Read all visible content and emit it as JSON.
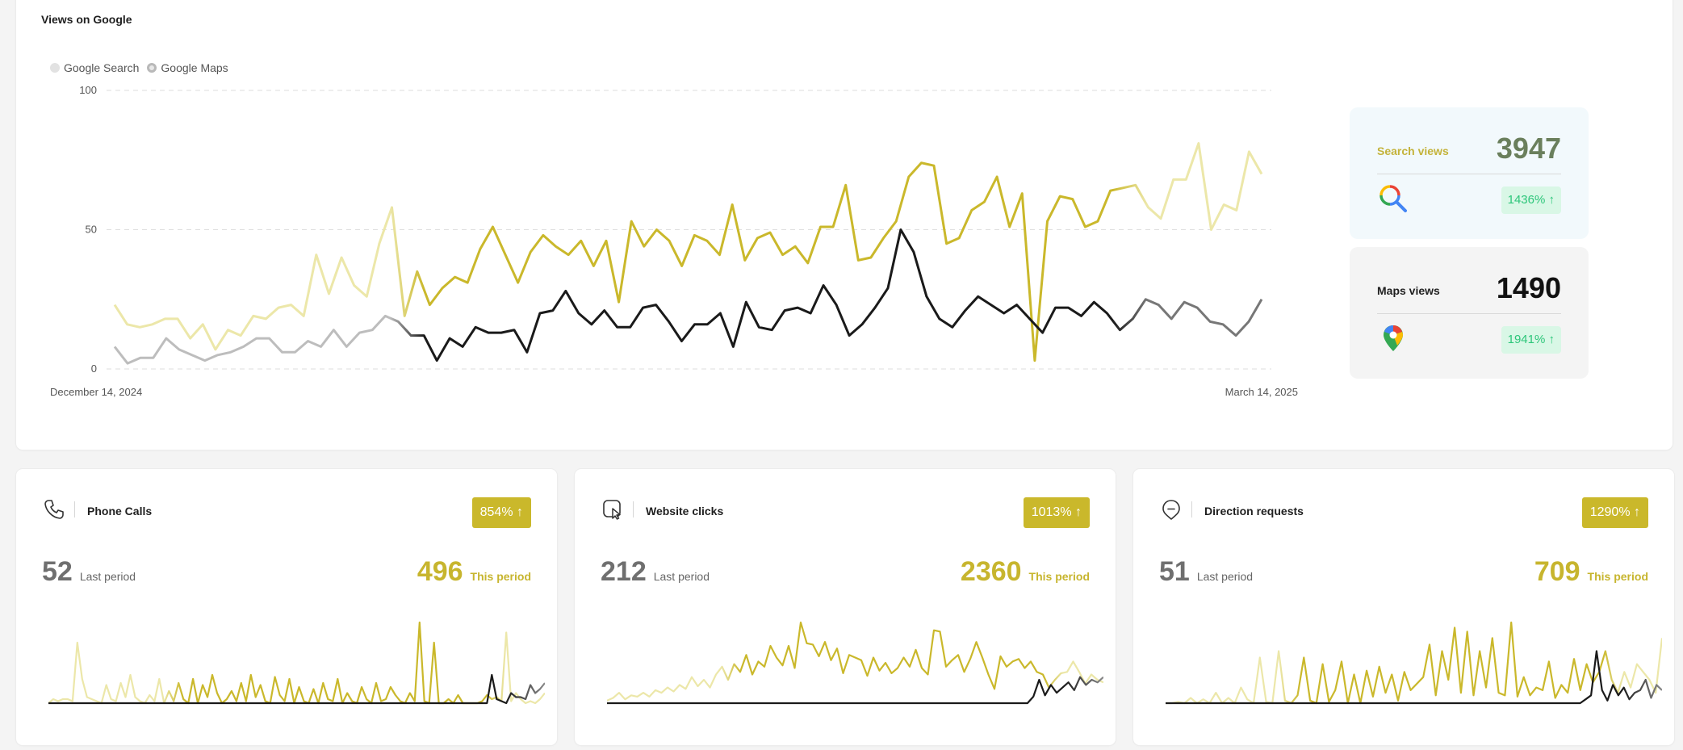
{
  "views": {
    "title": "Views on Google",
    "legend": [
      {
        "label": "Google Search",
        "color": "#dcdcdc"
      },
      {
        "label": "Google Maps",
        "color": "#b9b9b9"
      }
    ],
    "search_box": {
      "label": "Search views",
      "value": "3947",
      "change": "1436% ↑",
      "label_color": "#c4b33a",
      "value_color": "#6a7f5c"
    },
    "maps_box": {
      "label": "Maps views",
      "value": "1490",
      "change": "1941% ↑"
    }
  },
  "chart_data": {
    "type": "line",
    "x_start_label": "December 14, 2024",
    "x_end_label": "March 14, 2025",
    "yticks": [
      "100",
      "50",
      "0"
    ],
    "ylim": [
      0,
      100
    ],
    "grid": "horizontal dashed",
    "legend": "top-left",
    "series": [
      {
        "name": "Google Search",
        "color": "#cab82b",
        "values": [
          23,
          16,
          15,
          16,
          18,
          18,
          11,
          16,
          7,
          14,
          12,
          19,
          18,
          22,
          23,
          19,
          41,
          27,
          40,
          30,
          26,
          45,
          58,
          19,
          35,
          23,
          29,
          33,
          31,
          43,
          51,
          41,
          31,
          42,
          48,
          44,
          41,
          46,
          37,
          46,
          24,
          53,
          44,
          50,
          46,
          37,
          48,
          46,
          41,
          59,
          39,
          47,
          49,
          41,
          44,
          38,
          51,
          51,
          66,
          39,
          40,
          47,
          53,
          69,
          74,
          73,
          45,
          47,
          57,
          60,
          69,
          51,
          63,
          3,
          53,
          62,
          61,
          51,
          53,
          64,
          65,
          66,
          58,
          54,
          68,
          68,
          81,
          50,
          59,
          57,
          78,
          70
        ]
      },
      {
        "name": "Google Maps",
        "color": "#1a1a1a",
        "values": [
          8,
          2,
          4,
          4,
          11,
          7,
          5,
          3,
          5,
          6,
          8,
          11,
          11,
          6,
          6,
          10,
          8,
          14,
          8,
          13,
          14,
          19,
          17,
          12,
          12,
          3,
          11,
          8,
          15,
          13,
          13,
          14,
          6,
          20,
          21,
          28,
          20,
          16,
          21,
          15,
          15,
          22,
          23,
          17,
          10,
          16,
          16,
          20,
          8,
          24,
          15,
          14,
          21,
          22,
          20,
          30,
          23,
          12,
          16,
          22,
          29,
          50,
          42,
          26,
          18,
          15,
          21,
          26,
          23,
          20,
          23,
          18,
          13,
          22,
          22,
          19,
          24,
          20,
          14,
          18,
          25,
          23,
          18,
          24,
          22,
          17,
          16,
          12,
          17,
          25
        ]
      }
    ]
  },
  "metrics": [
    {
      "title": "Phone Calls",
      "icon": "phone-icon",
      "change": "854% ↑",
      "last_value": "52",
      "last_label": "Last period",
      "this_value": "496",
      "this_label": "This period",
      "spark": {
        "current": [
          0,
          2,
          1,
          2,
          2,
          1,
          30,
          12,
          3,
          2,
          1,
          0,
          9,
          2,
          1,
          10,
          3,
          14,
          3,
          1,
          0,
          4,
          1,
          12,
          0,
          6,
          1,
          10,
          2,
          0,
          12,
          0,
          9,
          3,
          14,
          5,
          0,
          2,
          6,
          1,
          10,
          1,
          14,
          3,
          9,
          1,
          0,
          13,
          4,
          1,
          12,
          0,
          8,
          1,
          0,
          7,
          0,
          10,
          2,
          1,
          12,
          0,
          5,
          1,
          0,
          8,
          2,
          0,
          10,
          1,
          2,
          8,
          4,
          1,
          0,
          5,
          1,
          40,
          1,
          0,
          30,
          0,
          0,
          2,
          0,
          4,
          0,
          0,
          0,
          0,
          1,
          4,
          2,
          3,
          1,
          35,
          1,
          5,
          2,
          0,
          1,
          0,
          2,
          5
        ],
        "previous": [
          0,
          0,
          0,
          0,
          0,
          0,
          0,
          0,
          0,
          0,
          0,
          0,
          0,
          0,
          0,
          0,
          0,
          0,
          0,
          0,
          0,
          0,
          0,
          0,
          0,
          0,
          0,
          0,
          0,
          0,
          0,
          0,
          0,
          0,
          0,
          0,
          0,
          0,
          0,
          0,
          0,
          0,
          0,
          0,
          0,
          0,
          0,
          0,
          0,
          0,
          0,
          0,
          0,
          0,
          0,
          0,
          0,
          0,
          0,
          0,
          0,
          0,
          0,
          0,
          0,
          0,
          0,
          0,
          0,
          0,
          0,
          0,
          0,
          0,
          0,
          0,
          0,
          0,
          0,
          0,
          0,
          0,
          0,
          0,
          0,
          0,
          0,
          0,
          0,
          0,
          0,
          0,
          14,
          2,
          1,
          0,
          5,
          3,
          3,
          2,
          9,
          5,
          7,
          10
        ]
      }
    },
    {
      "title": "Website clicks",
      "icon": "website-click-icon",
      "change": "1013% ↑",
      "last_value": "212",
      "last_label": "Last period",
      "this_value": "2360",
      "this_label": "This period",
      "spark": {
        "current": [
          2,
          4,
          8,
          3,
          6,
          5,
          8,
          5,
          10,
          8,
          12,
          9,
          14,
          11,
          20,
          13,
          18,
          12,
          22,
          28,
          18,
          30,
          24,
          37,
          22,
          32,
          28,
          44,
          35,
          29,
          44,
          27,
          62,
          46,
          45,
          36,
          47,
          33,
          42,
          23,
          37,
          35,
          33,
          21,
          35,
          25,
          31,
          23,
          27,
          35,
          28,
          41,
          27,
          22,
          56,
          55,
          28,
          33,
          37,
          24,
          34,
          47,
          35,
          22,
          11,
          36,
          28,
          32,
          34,
          27,
          32,
          24,
          22,
          12,
          18,
          23,
          24,
          32,
          24,
          15,
          22,
          18,
          16
        ],
        "previous": [
          0,
          0,
          0,
          0,
          0,
          0,
          0,
          0,
          0,
          0,
          0,
          0,
          0,
          0,
          0,
          0,
          0,
          0,
          0,
          0,
          0,
          0,
          0,
          0,
          0,
          0,
          0,
          0,
          0,
          0,
          0,
          0,
          0,
          0,
          0,
          0,
          0,
          0,
          0,
          0,
          0,
          0,
          0,
          0,
          0,
          0,
          0,
          0,
          0,
          0,
          0,
          0,
          0,
          0,
          0,
          0,
          0,
          0,
          0,
          0,
          0,
          0,
          0,
          0,
          0,
          0,
          0,
          0,
          0,
          0,
          0,
          0,
          0,
          5,
          18,
          6,
          14,
          8,
          12,
          16,
          10,
          20,
          14,
          18,
          16,
          20
        ]
      }
    },
    {
      "title": "Direction requests",
      "icon": "direction-icon",
      "change": "1290% ↑",
      "last_value": "51",
      "last_label": "Last period",
      "this_value": "709",
      "this_label": "This period",
      "spark": {
        "current": [
          0,
          0,
          1,
          0,
          4,
          0,
          3,
          0,
          8,
          0,
          4,
          0,
          12,
          3,
          0,
          35,
          1,
          0,
          40,
          2,
          0,
          6,
          35,
          2,
          0,
          30,
          1,
          10,
          32,
          0,
          22,
          0,
          25,
          5,
          28,
          8,
          22,
          2,
          24,
          10,
          15,
          20,
          45,
          6,
          40,
          18,
          58,
          8,
          55,
          6,
          40,
          12,
          50,
          8,
          6,
          62,
          5,
          20,
          6,
          12,
          10,
          32,
          4,
          14,
          8,
          34,
          10,
          30,
          16,
          24,
          40,
          18,
          8,
          24,
          12,
          30,
          24,
          18,
          8,
          50
        ],
        "previous": [
          0,
          0,
          0,
          0,
          0,
          0,
          0,
          0,
          0,
          0,
          0,
          0,
          0,
          0,
          0,
          0,
          0,
          0,
          0,
          0,
          0,
          0,
          0,
          0,
          0,
          0,
          0,
          0,
          0,
          0,
          0,
          0,
          0,
          0,
          0,
          0,
          0,
          0,
          0,
          0,
          0,
          0,
          0,
          0,
          0,
          0,
          0,
          0,
          0,
          0,
          0,
          0,
          0,
          0,
          0,
          0,
          0,
          0,
          0,
          0,
          0,
          0,
          0,
          0,
          0,
          0,
          0,
          0,
          0,
          0,
          0,
          0,
          0,
          0,
          0,
          0,
          0,
          3,
          6,
          40,
          10,
          2,
          14,
          6,
          12,
          3,
          8,
          10,
          18,
          4,
          14,
          10
        ]
      }
    }
  ]
}
